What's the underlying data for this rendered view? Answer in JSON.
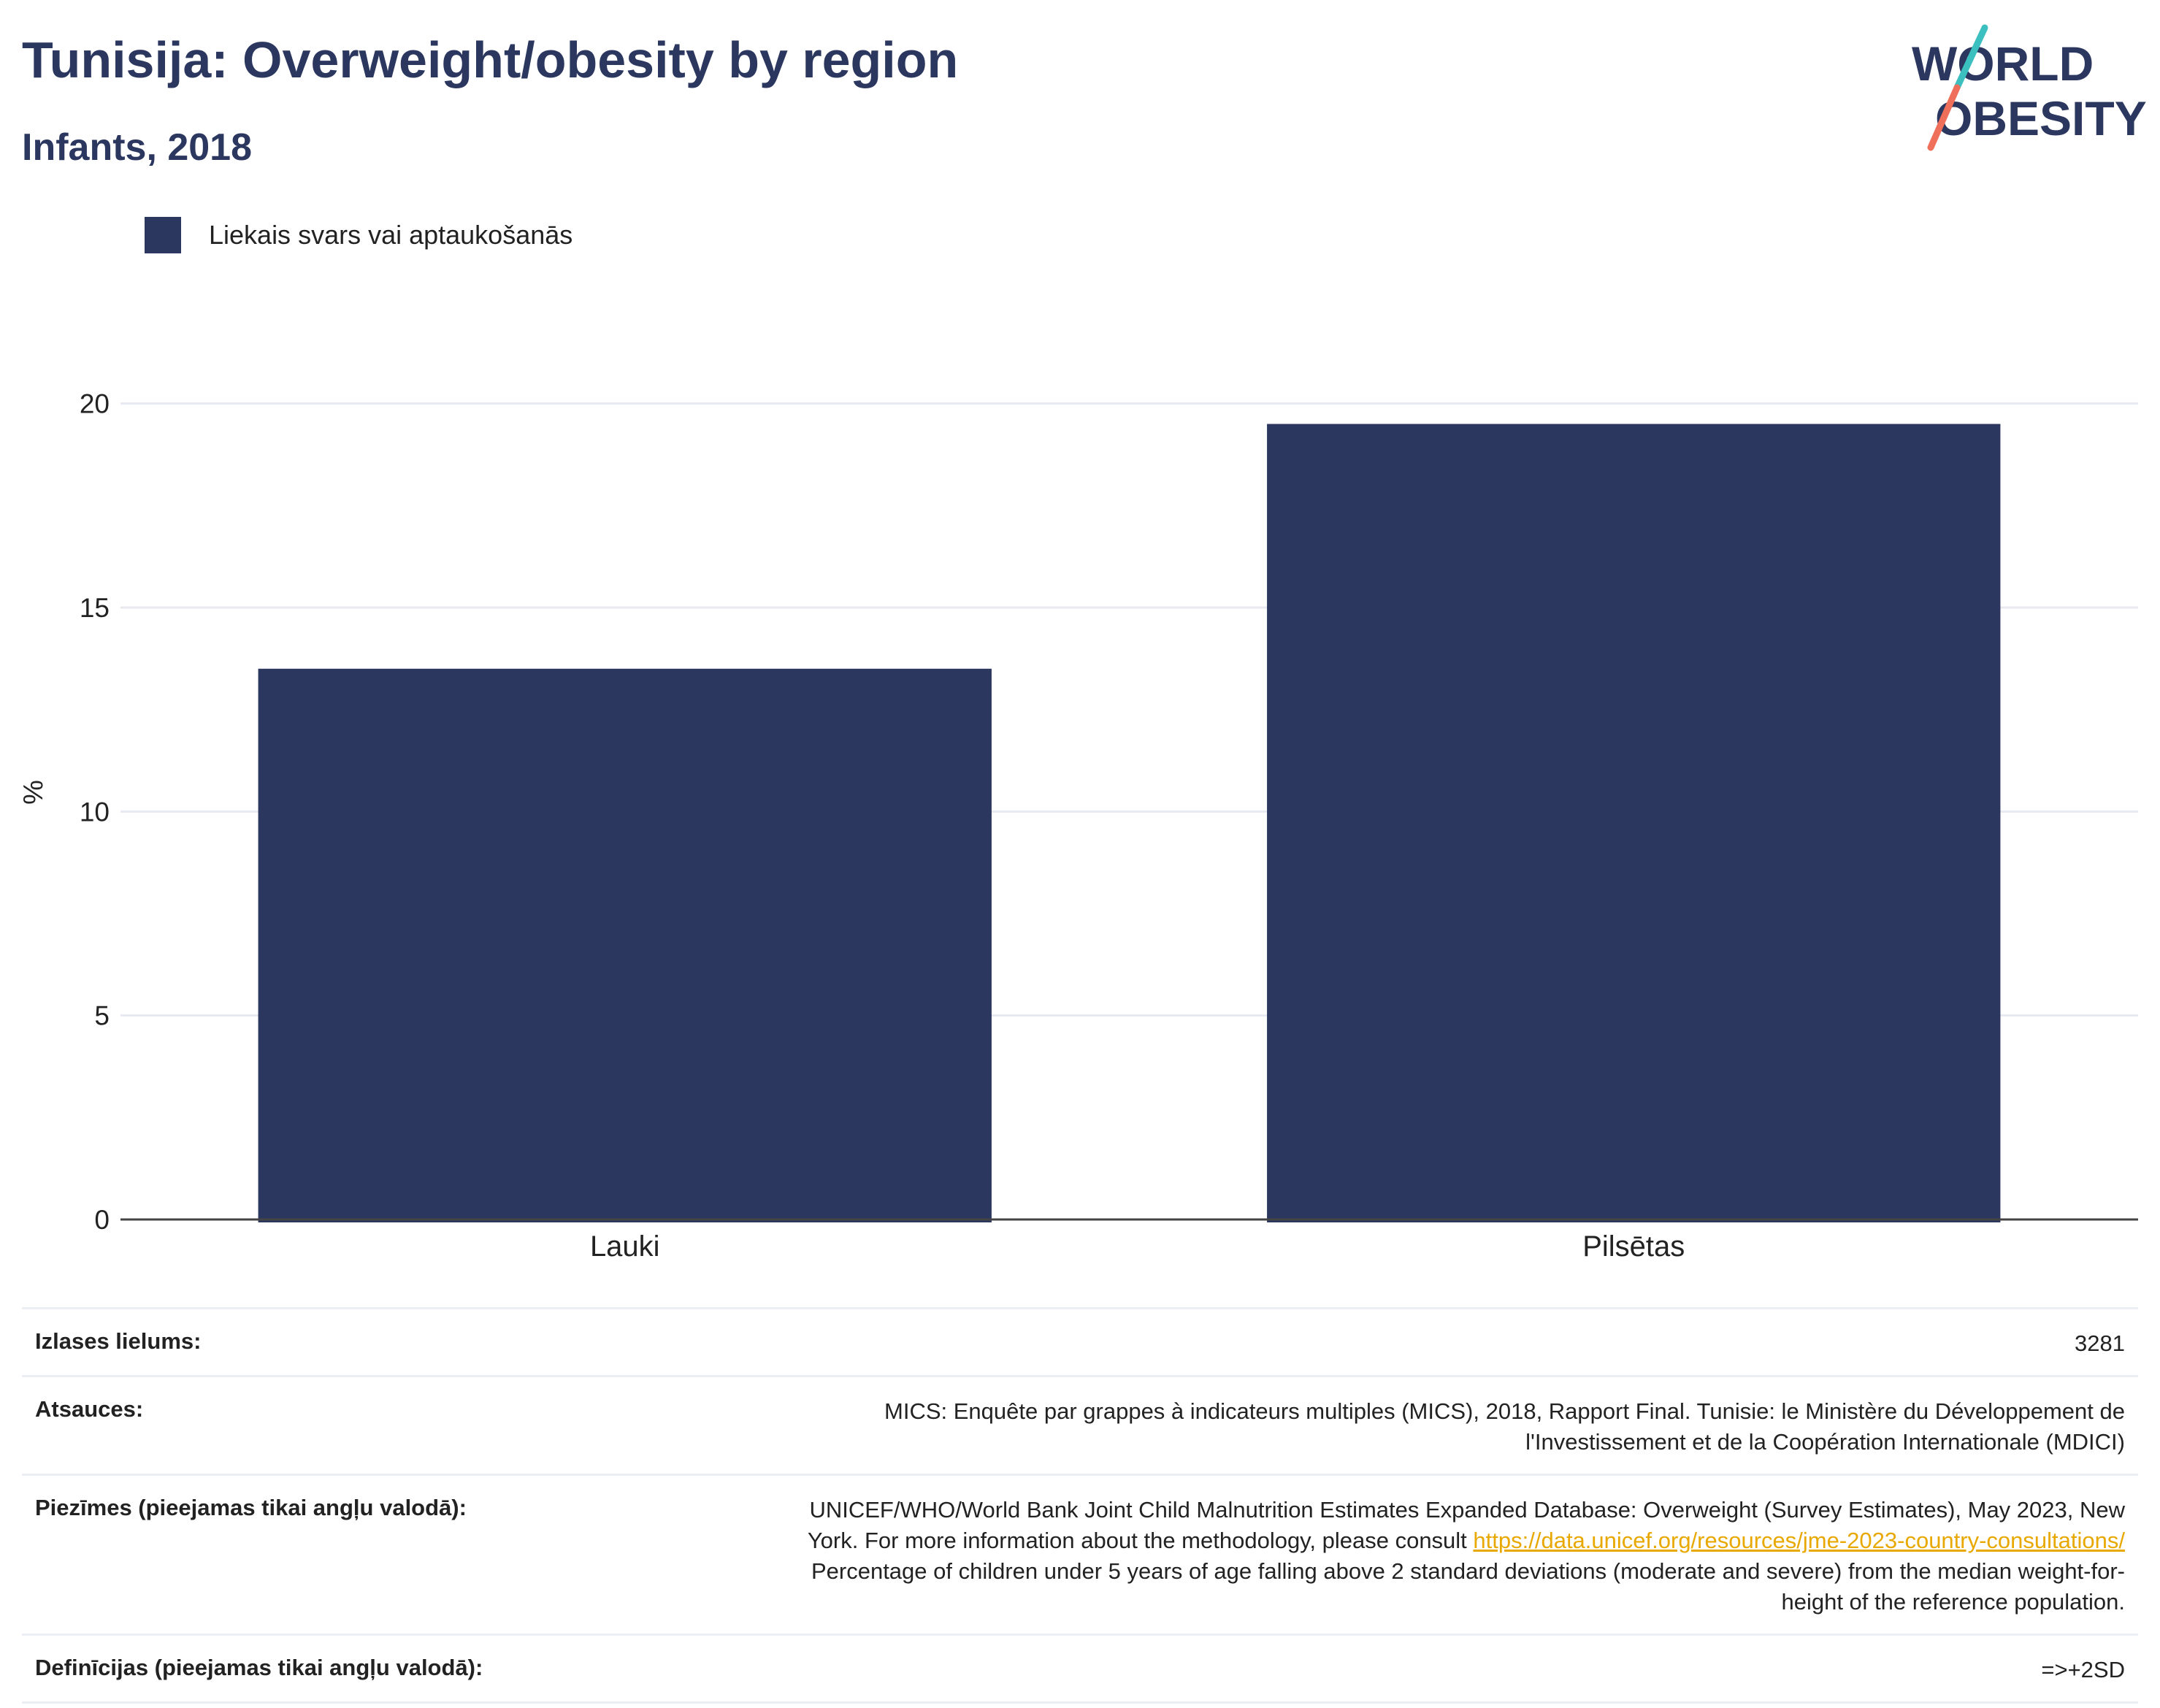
{
  "header": {
    "title": "Tunisija: Overweight/obesity by region",
    "subtitle": "Infants, 2018"
  },
  "logo": {
    "line1": "WORLD",
    "line2": "OBESITY"
  },
  "legend": {
    "label": "Liekais svars vai aptaukošanās"
  },
  "chart_data": {
    "type": "bar",
    "categories": [
      "Lauki",
      "Pilsētas"
    ],
    "series": [
      {
        "name": "Liekais svars vai aptaukošanās",
        "values": [
          13.5,
          19.5
        ],
        "color": "#2b375f"
      }
    ],
    "ylabel": "%",
    "ylim": [
      0,
      21.3
    ],
    "yticks": [
      0,
      5,
      10,
      15,
      20
    ],
    "grid": true,
    "legend_position": "top-left"
  },
  "info": {
    "sample_size": {
      "label": "Izlases lielums:",
      "value": "3281"
    },
    "sources": {
      "label": "Atsauces:",
      "line1": "MICS: Enquête par grappes à indicateurs multiples (MICS), 2018, Rapport Final. Tunisie: le Ministère du Développement de",
      "line2": "l'Investissement et de la Coopération Internationale (MDICI)"
    },
    "notes": {
      "label": "Piezīmes (pieejamas tikai angļu valodā):",
      "line1": "UNICEF/WHO/World Bank Joint Child Malnutrition Estimates Expanded Database: Overweight (Survey Estimates), May 2023, New",
      "line2_prefix": "York. For more information about the methodology, please consult ",
      "link": "https://data.unicef.org/resources/jme-2023-country-consultations/",
      "line3": "Percentage of children under 5 years of age falling above 2 standard deviations (moderate and severe) from the median weight-for-",
      "line4": "height of the reference population."
    },
    "definitions": {
      "label": "Definīcijas (pieejamas tikai angļu valodā):",
      "value": "=>+2SD"
    }
  },
  "colors": {
    "bar": "#2b375f",
    "title": "#2b375f",
    "grid": "#e8eaf1",
    "axis": "#444444",
    "link": "#e8a800",
    "logo_teal": "#3bbfbf",
    "logo_coral": "#ef6f5b"
  }
}
